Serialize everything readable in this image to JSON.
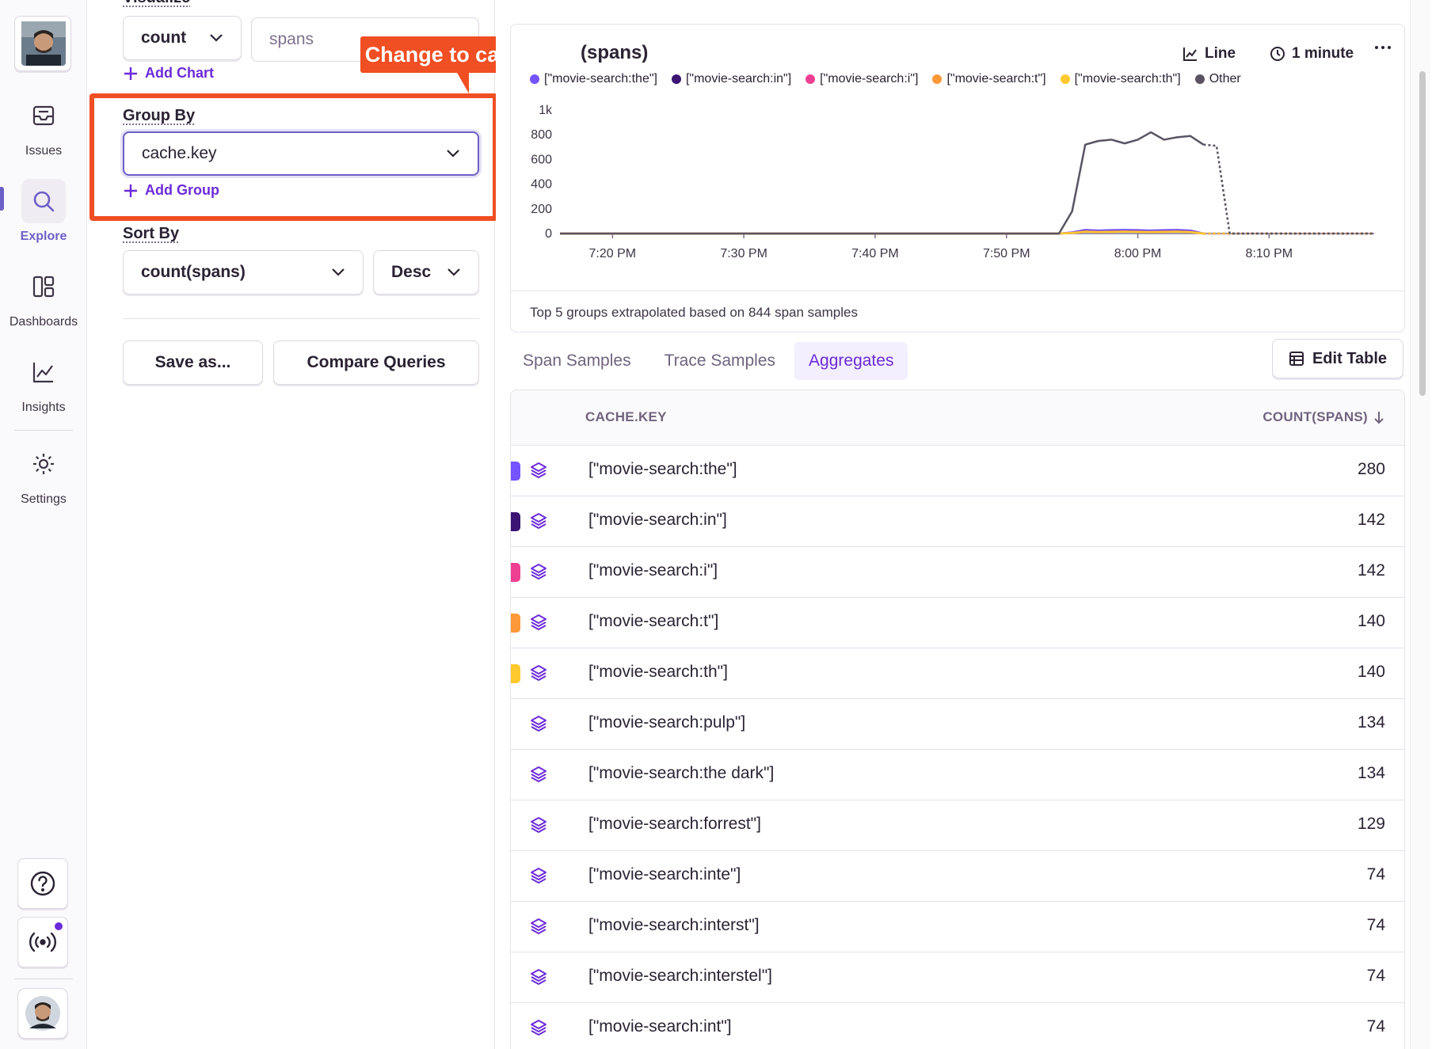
{
  "nav": {
    "items": [
      {
        "label": "Issues",
        "icon": "inbox-icon"
      },
      {
        "label": "Explore",
        "icon": "search-icon",
        "active": true
      },
      {
        "label": "Dashboards",
        "icon": "dashboard-icon"
      },
      {
        "label": "Insights",
        "icon": "graph-icon"
      },
      {
        "label": "Settings",
        "icon": "gear-icon"
      }
    ]
  },
  "query": {
    "visualize_title": "Visualize",
    "aggregate": "count",
    "field_placeholder": "spans",
    "add_chart": "Add Chart",
    "group_by_title": "Group By",
    "group_by_value": "cache.key",
    "add_group": "Add Group",
    "sort_by_title": "Sort By",
    "sort_field": "count(spans)",
    "sort_order": "Desc",
    "save_as": "Save as...",
    "compare": "Compare Queries"
  },
  "annotation": {
    "text": "Change to cache.key",
    "color": "#f04e23"
  },
  "chart": {
    "title": "(spans)",
    "type_label": "Line",
    "interval_label": "1 minute",
    "footer": "Top 5 groups extrapolated based on 844 span samples"
  },
  "chart_data": {
    "type": "line",
    "title": "(spans)",
    "xlabel": "",
    "ylabel": "",
    "ylim": [
      0,
      1000
    ],
    "yticks": [
      "0",
      "200",
      "400",
      "600",
      "800",
      "1k"
    ],
    "xticks": [
      "7:20 PM",
      "7:30 PM",
      "7:40 PM",
      "7:50 PM",
      "8:00 PM",
      "8:10 PM"
    ],
    "x": [
      "7:16 PM",
      "7:54 PM",
      "7:55 PM",
      "7:56 PM",
      "7:57 PM",
      "7:58 PM",
      "7:59 PM",
      "8:00 PM",
      "8:01 PM",
      "8:02 PM",
      "8:03 PM",
      "8:04 PM",
      "8:05 PM",
      "8:06 PM",
      "8:07 PM",
      "8:18 PM"
    ],
    "series": [
      {
        "name": "[\"movie-search:the\"]",
        "color": "#7553ff",
        "values": [
          0,
          0,
          10,
          30,
          25,
          28,
          30,
          28,
          25,
          28,
          30,
          25,
          0,
          0,
          0,
          0
        ]
      },
      {
        "name": "[\"movie-search:in\"]",
        "color": "#3b1474",
        "values": [
          0,
          0,
          5,
          18,
          14,
          16,
          18,
          16,
          14,
          16,
          18,
          14,
          0,
          0,
          0,
          0
        ]
      },
      {
        "name": "[\"movie-search:i\"]",
        "color": "#ee3f93",
        "values": [
          0,
          0,
          5,
          18,
          14,
          16,
          18,
          16,
          14,
          16,
          18,
          14,
          0,
          0,
          0,
          0
        ]
      },
      {
        "name": "[\"movie-search:t\"]",
        "color": "#ff9838",
        "values": [
          0,
          0,
          5,
          15,
          12,
          14,
          15,
          14,
          12,
          14,
          15,
          12,
          0,
          0,
          0,
          0
        ]
      },
      {
        "name": "[\"movie-search:th\"]",
        "color": "#fdc92e",
        "values": [
          0,
          0,
          5,
          15,
          12,
          14,
          15,
          14,
          12,
          14,
          15,
          12,
          0,
          0,
          0,
          0
        ]
      },
      {
        "name": "Other",
        "color": "#5a5363",
        "values": [
          0,
          0,
          180,
          720,
          750,
          760,
          730,
          760,
          820,
          760,
          780,
          790,
          720,
          710,
          0,
          0
        ]
      }
    ],
    "grid": false,
    "legend": "top-left"
  },
  "tabs": [
    {
      "label": "Span Samples",
      "active": false
    },
    {
      "label": "Trace Samples",
      "active": false
    },
    {
      "label": "Aggregates",
      "active": true
    }
  ],
  "edit_table": "Edit Table",
  "table": {
    "col_key": "CACHE.KEY",
    "col_count": "COUNT(SPANS)",
    "rows": [
      {
        "key": "[\"movie-search:the\"]",
        "count": "280",
        "color": "#7553ff"
      },
      {
        "key": "[\"movie-search:in\"]",
        "count": "142",
        "color": "#3b1474"
      },
      {
        "key": "[\"movie-search:i\"]",
        "count": "142",
        "color": "#ee3f93"
      },
      {
        "key": "[\"movie-search:t\"]",
        "count": "140",
        "color": "#ff9838"
      },
      {
        "key": "[\"movie-search:th\"]",
        "count": "140",
        "color": "#fdc92e"
      },
      {
        "key": "[\"movie-search:pulp\"]",
        "count": "134",
        "color": ""
      },
      {
        "key": "[\"movie-search:the dark\"]",
        "count": "134",
        "color": ""
      },
      {
        "key": "[\"movie-search:forrest\"]",
        "count": "129",
        "color": ""
      },
      {
        "key": "[\"movie-search:inte\"]",
        "count": "74",
        "color": ""
      },
      {
        "key": "[\"movie-search:interst\"]",
        "count": "74",
        "color": ""
      },
      {
        "key": "[\"movie-search:interstel\"]",
        "count": "74",
        "color": ""
      },
      {
        "key": "[\"movie-search:int\"]",
        "count": "74",
        "color": ""
      }
    ]
  }
}
